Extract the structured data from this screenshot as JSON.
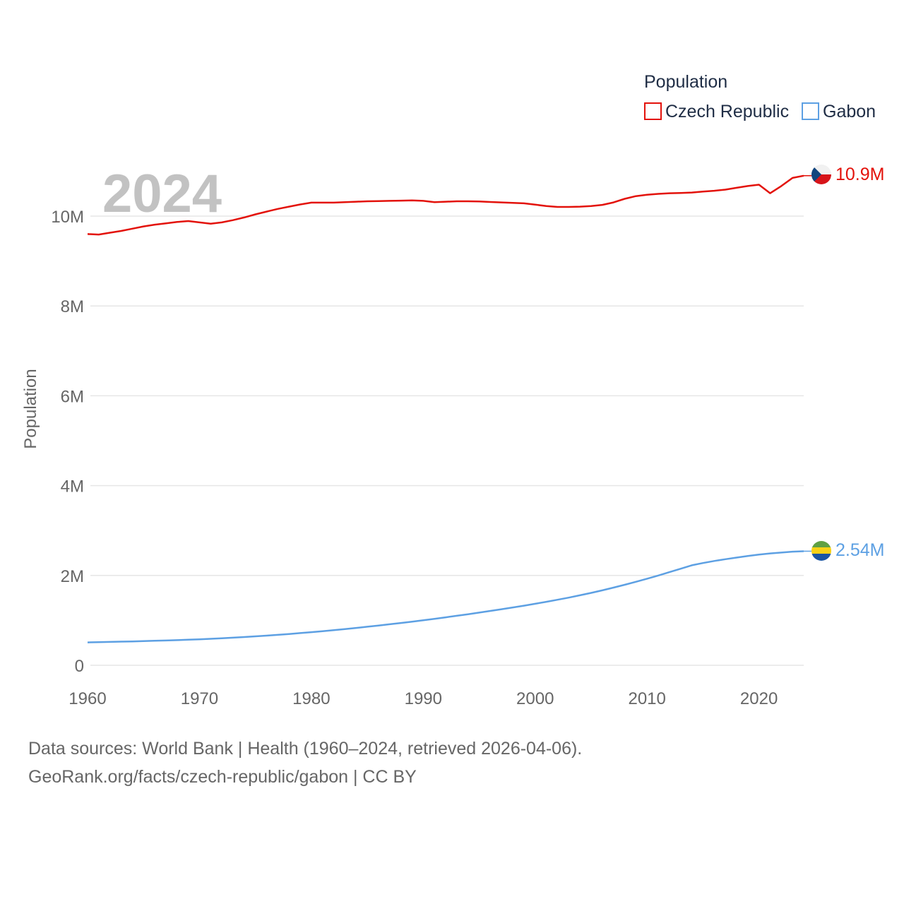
{
  "chart_data": {
    "type": "line",
    "title": "",
    "year_watermark": "2024",
    "xlabel": "",
    "ylabel": "Population",
    "xlim": [
      1960,
      2024
    ],
    "ylim": [
      0,
      11000000
    ],
    "x_ticks": [
      1960,
      1970,
      1980,
      1990,
      2000,
      2010,
      2020
    ],
    "x_tick_labels": [
      "1960",
      "1970",
      "1980",
      "1990",
      "2000",
      "2010",
      "2020"
    ],
    "y_ticks": [
      0,
      2000000,
      4000000,
      6000000,
      8000000,
      10000000
    ],
    "y_tick_labels": [
      "0",
      "2M",
      "4M",
      "6M",
      "8M",
      "10M"
    ],
    "grid": true,
    "legend": {
      "title": "Population",
      "placement": "top-right",
      "entries": [
        "Czech Republic",
        "Gabon"
      ]
    },
    "x": [
      1960,
      1961,
      1962,
      1963,
      1964,
      1965,
      1966,
      1967,
      1968,
      1969,
      1970,
      1971,
      1972,
      1973,
      1974,
      1975,
      1976,
      1977,
      1978,
      1979,
      1980,
      1981,
      1982,
      1983,
      1984,
      1985,
      1986,
      1987,
      1988,
      1989,
      1990,
      1991,
      1992,
      1993,
      1994,
      1995,
      1996,
      1997,
      1998,
      1999,
      2000,
      2001,
      2002,
      2003,
      2004,
      2005,
      2006,
      2007,
      2008,
      2009,
      2010,
      2011,
      2012,
      2013,
      2014,
      2015,
      2016,
      2017,
      2018,
      2019,
      2020,
      2021,
      2022,
      2023,
      2024
    ],
    "series": [
      {
        "name": "Czech Republic",
        "color": "#e3120b",
        "end_label": "10.9M",
        "values": [
          9600000,
          9590000,
          9630000,
          9670000,
          9720000,
          9770000,
          9810000,
          9840000,
          9870000,
          9890000,
          9860000,
          9830000,
          9860000,
          9910000,
          9970000,
          10040000,
          10100000,
          10160000,
          10210000,
          10260000,
          10300000,
          10300000,
          10300000,
          10310000,
          10320000,
          10330000,
          10335000,
          10340000,
          10345000,
          10350000,
          10340000,
          10310000,
          10320000,
          10330000,
          10330000,
          10325000,
          10315000,
          10305000,
          10295000,
          10285000,
          10255000,
          10225000,
          10205000,
          10205000,
          10210000,
          10225000,
          10250000,
          10305000,
          10385000,
          10445000,
          10475000,
          10495000,
          10510000,
          10515000,
          10525000,
          10545000,
          10565000,
          10590000,
          10630000,
          10670000,
          10700000,
          10510000,
          10670000,
          10850000,
          10900000
        ]
      },
      {
        "name": "Gabon",
        "color": "#5da0e3",
        "end_label": "2.54M",
        "values": [
          510000,
          515000,
          520000,
          526000,
          532000,
          538000,
          545000,
          552000,
          560000,
          569000,
          579000,
          590000,
          602000,
          615000,
          629000,
          644000,
          660000,
          678000,
          697000,
          717000,
          738000,
          760000,
          783000,
          807000,
          832000,
          858000,
          885000,
          913000,
          942000,
          972000,
          1003000,
          1035000,
          1068000,
          1102000,
          1137000,
          1173000,
          1210000,
          1248000,
          1287000,
          1327000,
          1369000,
          1413000,
          1459000,
          1507000,
          1558000,
          1612000,
          1669000,
          1729000,
          1792000,
          1858000,
          1927000,
          1999000,
          2074000,
          2150000,
          2226000,
          2276000,
          2322000,
          2362000,
          2398000,
          2432000,
          2465000,
          2490000,
          2510000,
          2530000,
          2540000
        ]
      }
    ]
  },
  "footer": {
    "line1": "Data sources: World Bank | Health (1960–2024, retrieved 2026-04-06).",
    "line2": "GeoRank.org/facts/czech-republic/gabon | CC BY"
  }
}
